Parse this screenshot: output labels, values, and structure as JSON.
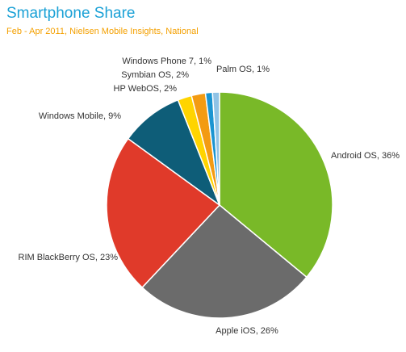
{
  "title": "Smartphone Share",
  "subtitle": "Feb - Apr 2011, Nielsen Mobile Insights, National",
  "chart_data": {
    "type": "pie",
    "title": "Smartphone Share",
    "subtitle": "Feb - Apr 2011, Nielsen Mobile Insights, National",
    "unit": "%",
    "slices": [
      {
        "label": "Android OS, 36%",
        "name": "Android OS",
        "value": 36,
        "color": "#79b928"
      },
      {
        "label": "Apple iOS, 26%",
        "name": "Apple iOS",
        "value": 26,
        "color": "#6b6b6b"
      },
      {
        "label": "RIM BlackBerry OS, 23%",
        "name": "RIM BlackBerry OS",
        "value": 23,
        "color": "#e03a2a"
      },
      {
        "label": "Windows Mobile, 9%",
        "name": "Windows Mobile",
        "value": 9,
        "color": "#0e5d78"
      },
      {
        "label": "HP WebOS, 2%",
        "name": "HP WebOS",
        "value": 2,
        "color": "#ffd400"
      },
      {
        "label": "Symbian OS, 2%",
        "name": "Symbian OS",
        "value": 2,
        "color": "#f39b12"
      },
      {
        "label": "Windows Phone 7, 1%",
        "name": "Windows Phone 7",
        "value": 1,
        "color": "#1b95d1"
      },
      {
        "label": "Palm OS, 1%",
        "name": "Palm OS",
        "value": 1,
        "color": "#8fc3e6"
      }
    ]
  }
}
